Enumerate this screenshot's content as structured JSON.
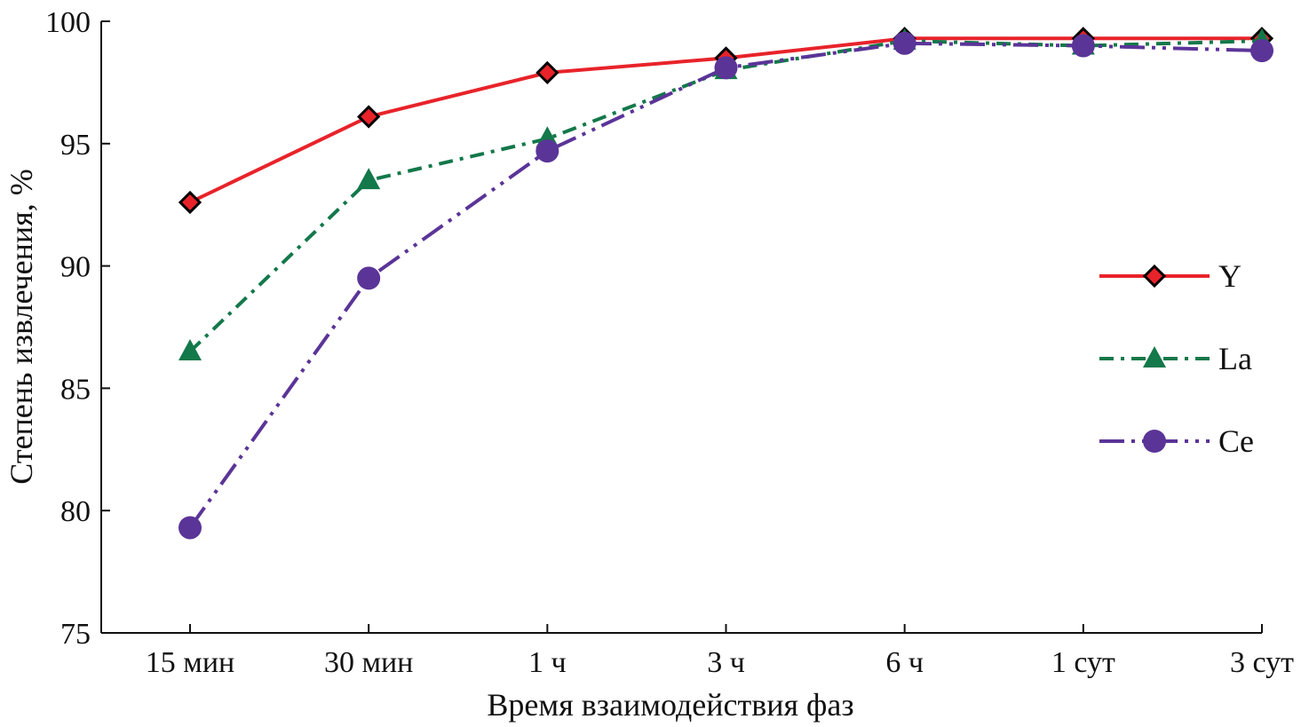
{
  "chart_data": {
    "type": "line",
    "title": "",
    "xlabel": "Время взаимодействия фаз",
    "ylabel": "Степень извлечения, %",
    "categories": [
      "15 мин",
      "30 мин",
      "1 ч",
      "3 ч",
      "6 ч",
      "1 сут",
      "3 сут"
    ],
    "ylim": [
      75,
      100
    ],
    "yticks": [
      75,
      80,
      85,
      90,
      95,
      100
    ],
    "grid": false,
    "legend_position": "right",
    "series": [
      {
        "name": "Y",
        "color": "#e8232a",
        "marker": "diamond",
        "dash": "solid",
        "values": [
          92.6,
          96.1,
          97.9,
          98.5,
          99.3,
          99.3,
          99.3
        ]
      },
      {
        "name": "La",
        "color": "#13784a",
        "marker": "triangle",
        "dash": "dash-dot",
        "values": [
          86.5,
          93.5,
          95.2,
          98.0,
          99.2,
          99.0,
          99.2
        ]
      },
      {
        "name": "Ce",
        "color": "#5b3498",
        "marker": "circle",
        "dash": "long-dash-dot-dot",
        "values": [
          79.3,
          89.5,
          94.7,
          98.1,
          99.1,
          99.0,
          98.8
        ]
      }
    ]
  }
}
